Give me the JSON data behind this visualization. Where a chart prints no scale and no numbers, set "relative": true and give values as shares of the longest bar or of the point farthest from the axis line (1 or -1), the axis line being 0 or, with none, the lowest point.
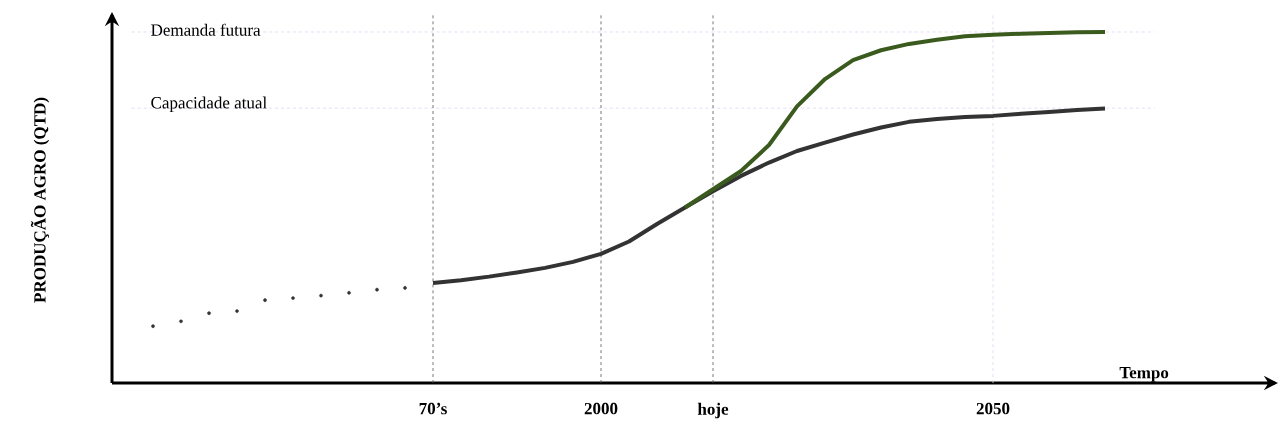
{
  "chart_data": {
    "type": "line",
    "relative": true,
    "xlabel": "Tempo",
    "ylabel": "PRODUÇÃO AGRO (QTD)",
    "categories": [
      null,
      null,
      null,
      null,
      null,
      null,
      null,
      null,
      null,
      null,
      null,
      "70’s",
      null,
      null,
      null,
      null,
      null,
      "2000",
      null,
      null,
      null,
      "hoje",
      null,
      null,
      null,
      null,
      null,
      null,
      null,
      null,
      null,
      "2050",
      null,
      null,
      null,
      null
    ],
    "series": [
      {
        "type": "scatter",
        "color": "#333333",
        "values": [
          null,
          0.162,
          0.176,
          0.199,
          0.205,
          0.236,
          0.242,
          0.249,
          0.257,
          0.266,
          0.271,
          null,
          null,
          null,
          null,
          null,
          null,
          null,
          null,
          null,
          null,
          null,
          null,
          null,
          null,
          null,
          null,
          null,
          null,
          null,
          null,
          null,
          null,
          null,
          null,
          null
        ]
      },
      {
        "color": "#333333",
        "values": [
          null,
          null,
          null,
          null,
          null,
          null,
          null,
          null,
          null,
          null,
          null,
          0.285,
          0.293,
          0.303,
          0.315,
          0.328,
          0.345,
          0.368,
          0.403,
          0.453,
          0.5,
          0.546,
          0.59,
          0.628,
          0.661,
          0.685,
          0.708,
          0.728,
          0.744,
          0.752,
          0.758,
          0.761,
          0.767,
          0.772,
          0.778,
          0.782
        ]
      },
      {
        "color": "#3a5a1e",
        "values": [
          null,
          null,
          null,
          null,
          null,
          null,
          null,
          null,
          null,
          null,
          null,
          null,
          null,
          null,
          null,
          null,
          null,
          null,
          null,
          null,
          0.5,
          0.552,
          0.604,
          0.678,
          0.788,
          0.866,
          0.92,
          0.948,
          0.966,
          0.978,
          0.988,
          0.992,
          0.995,
          0.997,
          0.999,
          1.0
        ]
      }
    ],
    "ref_lines": [
      {
        "axis": "y",
        "value": 1.0,
        "label": "Demanda futura",
        "color": "#ddd5f0",
        "line_style": "dashed"
      },
      {
        "axis": "y",
        "value": 0.783,
        "label": "Capacidade atual",
        "color": "#ddd5f0",
        "line_style": "dashed"
      },
      {
        "axis": "x",
        "value": "70’s",
        "color": "#555555",
        "line_style": "dashed"
      },
      {
        "axis": "x",
        "value": "2000",
        "color": "#555555",
        "line_style": "dashed"
      },
      {
        "axis": "x",
        "value": "hoje",
        "color": "#555555",
        "line_style": "dashed"
      },
      {
        "axis": "x",
        "value": "2050",
        "color": "#ddd5f0",
        "line_style": "dashed"
      }
    ]
  }
}
